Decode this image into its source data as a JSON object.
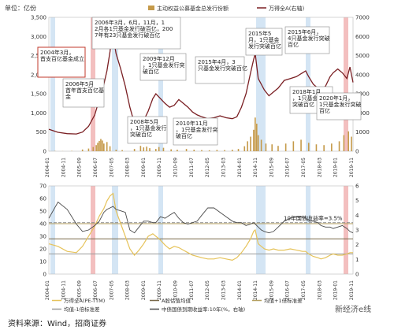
{
  "unit_label": "单位：亿份",
  "source_text": "资料来源：Wind，招商证券",
  "watermark_text": "新经济e线",
  "chart_data": [
    {
      "type": "bar",
      "legend": [
        {
          "name": "主动权益公募基金总发行份额",
          "color": "#c59a4a",
          "kind": "bar"
        },
        {
          "name": "万得全A(右轴)",
          "color": "#7a1f23",
          "kind": "line"
        }
      ],
      "ylim_left": [
        0,
        3500
      ],
      "left_ticks": [
        "0",
        "500",
        "1,000",
        "1,500",
        "2,000",
        "2,500",
        "3,000",
        "3,500"
      ],
      "ylim_right": [
        0,
        7000
      ],
      "right_ticks": [
        "0",
        "1000",
        "2000",
        "3000",
        "4000",
        "5000",
        "6000",
        "7000"
      ],
      "x_ticks": [
        "2004-01",
        "2004-11",
        "2005-09",
        "2006-07",
        "2007-05",
        "2008-03",
        "2009-01",
        "2009-11",
        "2010-09",
        "2011-07",
        "2012-05",
        "2013-03",
        "2014-01",
        "2014-11",
        "2015-09",
        "2016-07",
        "2017-05",
        "2018-03",
        "2019-01",
        "2019-11"
      ],
      "bars_monthly": [
        [
          0,
          2
        ],
        [
          4,
          6
        ],
        [
          9,
          3
        ],
        [
          15,
          8
        ],
        [
          22,
          45
        ],
        [
          26,
          70
        ],
        [
          29,
          110
        ],
        [
          31,
          160
        ],
        [
          32,
          220
        ],
        [
          33,
          270
        ],
        [
          34,
          320
        ],
        [
          35,
          280
        ],
        [
          36,
          200
        ],
        [
          38,
          240
        ],
        [
          40,
          130
        ],
        [
          44,
          40
        ],
        [
          48,
          30
        ],
        [
          56,
          60
        ],
        [
          60,
          140
        ],
        [
          62,
          100
        ],
        [
          64,
          120
        ],
        [
          66,
          80
        ],
        [
          70,
          60
        ],
        [
          72,
          110
        ],
        [
          75,
          90
        ],
        [
          80,
          50
        ],
        [
          84,
          40
        ],
        [
          90,
          60
        ],
        [
          95,
          40
        ],
        [
          100,
          30
        ],
        [
          105,
          25
        ],
        [
          110,
          35
        ],
        [
          115,
          30
        ],
        [
          120,
          40
        ],
        [
          124,
          60
        ],
        [
          128,
          130
        ],
        [
          130,
          260
        ],
        [
          132,
          380
        ],
        [
          134,
          560
        ],
        [
          135,
          880
        ],
        [
          136,
          720
        ],
        [
          137,
          420
        ],
        [
          139,
          300
        ],
        [
          142,
          200
        ],
        [
          146,
          180
        ],
        [
          150,
          140
        ],
        [
          155,
          200
        ],
        [
          160,
          260
        ],
        [
          165,
          300
        ],
        [
          170,
          220
        ],
        [
          175,
          180
        ],
        [
          180,
          160
        ],
        [
          185,
          200
        ],
        [
          190,
          260
        ],
        [
          193,
          420
        ],
        [
          196,
          520
        ],
        [
          198,
          380
        ]
      ],
      "index_series": [
        [
          0,
          1150
        ],
        [
          6,
          990
        ],
        [
          12,
          920
        ],
        [
          18,
          900
        ],
        [
          22,
          1000
        ],
        [
          26,
          1300
        ],
        [
          30,
          1900
        ],
        [
          33,
          2700
        ],
        [
          36,
          3500
        ],
        [
          38,
          4200
        ],
        [
          40,
          5200
        ],
        [
          41,
          5900
        ],
        [
          42,
          6050
        ],
        [
          44,
          5100
        ],
        [
          47,
          4300
        ],
        [
          50,
          3400
        ],
        [
          53,
          2300
        ],
        [
          56,
          1450
        ],
        [
          59,
          1250
        ],
        [
          62,
          1600
        ],
        [
          65,
          2100
        ],
        [
          68,
          2750
        ],
        [
          70,
          3000
        ],
        [
          73,
          2750
        ],
        [
          76,
          2500
        ],
        [
          79,
          2300
        ],
        [
          82,
          2400
        ],
        [
          85,
          2700
        ],
        [
          88,
          2500
        ],
        [
          91,
          2300
        ],
        [
          94,
          2050
        ],
        [
          97,
          1900
        ],
        [
          100,
          1800
        ],
        [
          104,
          1700
        ],
        [
          108,
          1750
        ],
        [
          112,
          1850
        ],
        [
          116,
          1750
        ],
        [
          120,
          1700
        ],
        [
          123,
          1800
        ],
        [
          126,
          2300
        ],
        [
          129,
          3000
        ],
        [
          132,
          4100
        ],
        [
          134,
          4800
        ],
        [
          135,
          5100
        ],
        [
          137,
          3800
        ],
        [
          139,
          3500
        ],
        [
          141,
          3200
        ],
        [
          144,
          2900
        ],
        [
          147,
          3100
        ],
        [
          150,
          3300
        ],
        [
          154,
          3700
        ],
        [
          158,
          3800
        ],
        [
          162,
          3900
        ],
        [
          166,
          4100
        ],
        [
          168,
          4200
        ],
        [
          170,
          3900
        ],
        [
          173,
          3500
        ],
        [
          176,
          3300
        ],
        [
          178,
          3200
        ],
        [
          181,
          3400
        ],
        [
          184,
          3900
        ],
        [
          186,
          4100
        ],
        [
          189,
          4300
        ],
        [
          192,
          4100
        ],
        [
          195,
          3800
        ],
        [
          197,
          4400
        ],
        [
          199,
          3600
        ]
      ],
      "annotations": [
        "2004年3月，首支百亿基金成立",
        "2006年5月首年首支百亿基金",
        "2006年3月，6月，11月，12月各1只基金发行破百亿，2007年有23只基金发行破百亿",
        "2008年5月，1只基金发行突破百亿",
        "2009年12月，1只基金发行突破百亿",
        "2010年11月，1只基金发行突破百亿",
        "2015年4月，3只基金发行突破百亿",
        "2015年5月，1只基金发行突破百亿",
        "2015年6月，4只基金发行突破百亿",
        "2018年1月，1只基金发行突破百亿",
        "2020年1月，1只基金发行突破百亿"
      ]
    },
    {
      "type": "line",
      "series": [
        {
          "name": "万得全A(PE-TTM)",
          "color": "#e6c35a"
        },
        {
          "name": "A股估值均值",
          "color": "#7a6a4a"
        },
        {
          "name": "均值+1倍标准差",
          "color": "#b5a060"
        },
        {
          "name": "均值-1倍标准差",
          "color": "#9a9a9a"
        },
        {
          "name": "中债国债到期收益率:10年(%，右轴)",
          "color": "#4a4a4a"
        }
      ],
      "ylim_left": [
        0,
        70
      ],
      "left_ticks": [
        "0",
        "10",
        "20",
        "30",
        "40",
        "50",
        "60",
        "70"
      ],
      "ylim_right": [
        0,
        6
      ],
      "right_ticks": [
        "0",
        "1",
        "2",
        "3",
        "4",
        "5",
        "6"
      ],
      "x_ticks": [
        "2004-01",
        "2004-11",
        "2005-09",
        "2006-07",
        "2007-05",
        "2008-03",
        "2009-01",
        "2009-11",
        "2010-09",
        "2011-07",
        "2012-05",
        "2013-03",
        "2014-01",
        "2014-11",
        "2015-09",
        "2016-07",
        "2017-05",
        "2018-03",
        "2019-01",
        "2019-11"
      ],
      "mean_value": 28,
      "upper_value": 40,
      "lower_value": 16,
      "annotation": "10年国债收益率=3.5%",
      "annotation_value": 3.5,
      "pe_series": [
        [
          0,
          24
        ],
        [
          6,
          22
        ],
        [
          12,
          18
        ],
        [
          18,
          17
        ],
        [
          22,
          22
        ],
        [
          26,
          30
        ],
        [
          30,
          38
        ],
        [
          33,
          46
        ],
        [
          36,
          52
        ],
        [
          38,
          58
        ],
        [
          40,
          62
        ],
        [
          42,
          64
        ],
        [
          44,
          50
        ],
        [
          47,
          40
        ],
        [
          50,
          30
        ],
        [
          53,
          20
        ],
        [
          56,
          15
        ],
        [
          59,
          19
        ],
        [
          62,
          24
        ],
        [
          65,
          30
        ],
        [
          68,
          32
        ],
        [
          70,
          30
        ],
        [
          73,
          27
        ],
        [
          76,
          23
        ],
        [
          79,
          20
        ],
        [
          82,
          22
        ],
        [
          85,
          21
        ],
        [
          88,
          19
        ],
        [
          91,
          17
        ],
        [
          94,
          15
        ],
        [
          97,
          14
        ],
        [
          100,
          13
        ],
        [
          104,
          12
        ],
        [
          108,
          12
        ],
        [
          112,
          13
        ],
        [
          116,
          12
        ],
        [
          120,
          11
        ],
        [
          123,
          13
        ],
        [
          126,
          17
        ],
        [
          129,
          22
        ],
        [
          132,
          28
        ],
        [
          134,
          34
        ],
        [
          135,
          35
        ],
        [
          137,
          24
        ],
        [
          139,
          22
        ],
        [
          141,
          20
        ],
        [
          144,
          19
        ],
        [
          147,
          20
        ],
        [
          150,
          19
        ],
        [
          154,
          19
        ],
        [
          158,
          20
        ],
        [
          162,
          19
        ],
        [
          166,
          18
        ],
        [
          168,
          18
        ],
        [
          170,
          16
        ],
        [
          173,
          14
        ],
        [
          176,
          13
        ],
        [
          178,
          12
        ],
        [
          181,
          13
        ],
        [
          184,
          15
        ],
        [
          186,
          16
        ],
        [
          189,
          15
        ],
        [
          192,
          15
        ],
        [
          195,
          16
        ],
        [
          197,
          17
        ],
        [
          199,
          17
        ]
      ],
      "yield_series": [
        [
          0,
          3.8
        ],
        [
          6,
          4.9
        ],
        [
          12,
          4.4
        ],
        [
          18,
          3.4
        ],
        [
          22,
          2.9
        ],
        [
          26,
          3.0
        ],
        [
          30,
          3.3
        ],
        [
          33,
          3.6
        ],
        [
          36,
          4.2
        ],
        [
          38,
          4.4
        ],
        [
          40,
          4.5
        ],
        [
          42,
          4.6
        ],
        [
          44,
          4.4
        ],
        [
          47,
          4.3
        ],
        [
          50,
          4.2
        ],
        [
          53,
          3.0
        ],
        [
          56,
          2.8
        ],
        [
          59,
          3.2
        ],
        [
          62,
          3.6
        ],
        [
          65,
          3.6
        ],
        [
          68,
          3.5
        ],
        [
          70,
          3.5
        ],
        [
          73,
          3.9
        ],
        [
          76,
          3.8
        ],
        [
          79,
          4.0
        ],
        [
          82,
          4.2
        ],
        [
          85,
          3.8
        ],
        [
          88,
          3.5
        ],
        [
          91,
          3.4
        ],
        [
          94,
          3.5
        ],
        [
          97,
          3.6
        ],
        [
          100,
          4.0
        ],
        [
          104,
          4.5
        ],
        [
          108,
          4.5
        ],
        [
          112,
          4.2
        ],
        [
          116,
          3.9
        ],
        [
          120,
          3.6
        ],
        [
          123,
          3.5
        ],
        [
          126,
          3.5
        ],
        [
          129,
          3.3
        ],
        [
          132,
          3.4
        ],
        [
          134,
          3.5
        ],
        [
          135,
          3.4
        ],
        [
          137,
          3.2
        ],
        [
          139,
          3.0
        ],
        [
          141,
          2.9
        ],
        [
          144,
          2.8
        ],
        [
          147,
          2.9
        ],
        [
          150,
          3.2
        ],
        [
          154,
          3.6
        ],
        [
          158,
          3.8
        ],
        [
          162,
          3.9
        ],
        [
          166,
          3.9
        ],
        [
          168,
          3.8
        ],
        [
          170,
          3.6
        ],
        [
          173,
          3.6
        ],
        [
          176,
          3.5
        ],
        [
          178,
          3.3
        ],
        [
          181,
          3.2
        ],
        [
          184,
          3.2
        ],
        [
          186,
          3.1
        ],
        [
          189,
          3.2
        ],
        [
          192,
          3.3
        ],
        [
          195,
          3.1
        ],
        [
          197,
          2.9
        ],
        [
          199,
          2.8
        ]
      ]
    }
  ]
}
